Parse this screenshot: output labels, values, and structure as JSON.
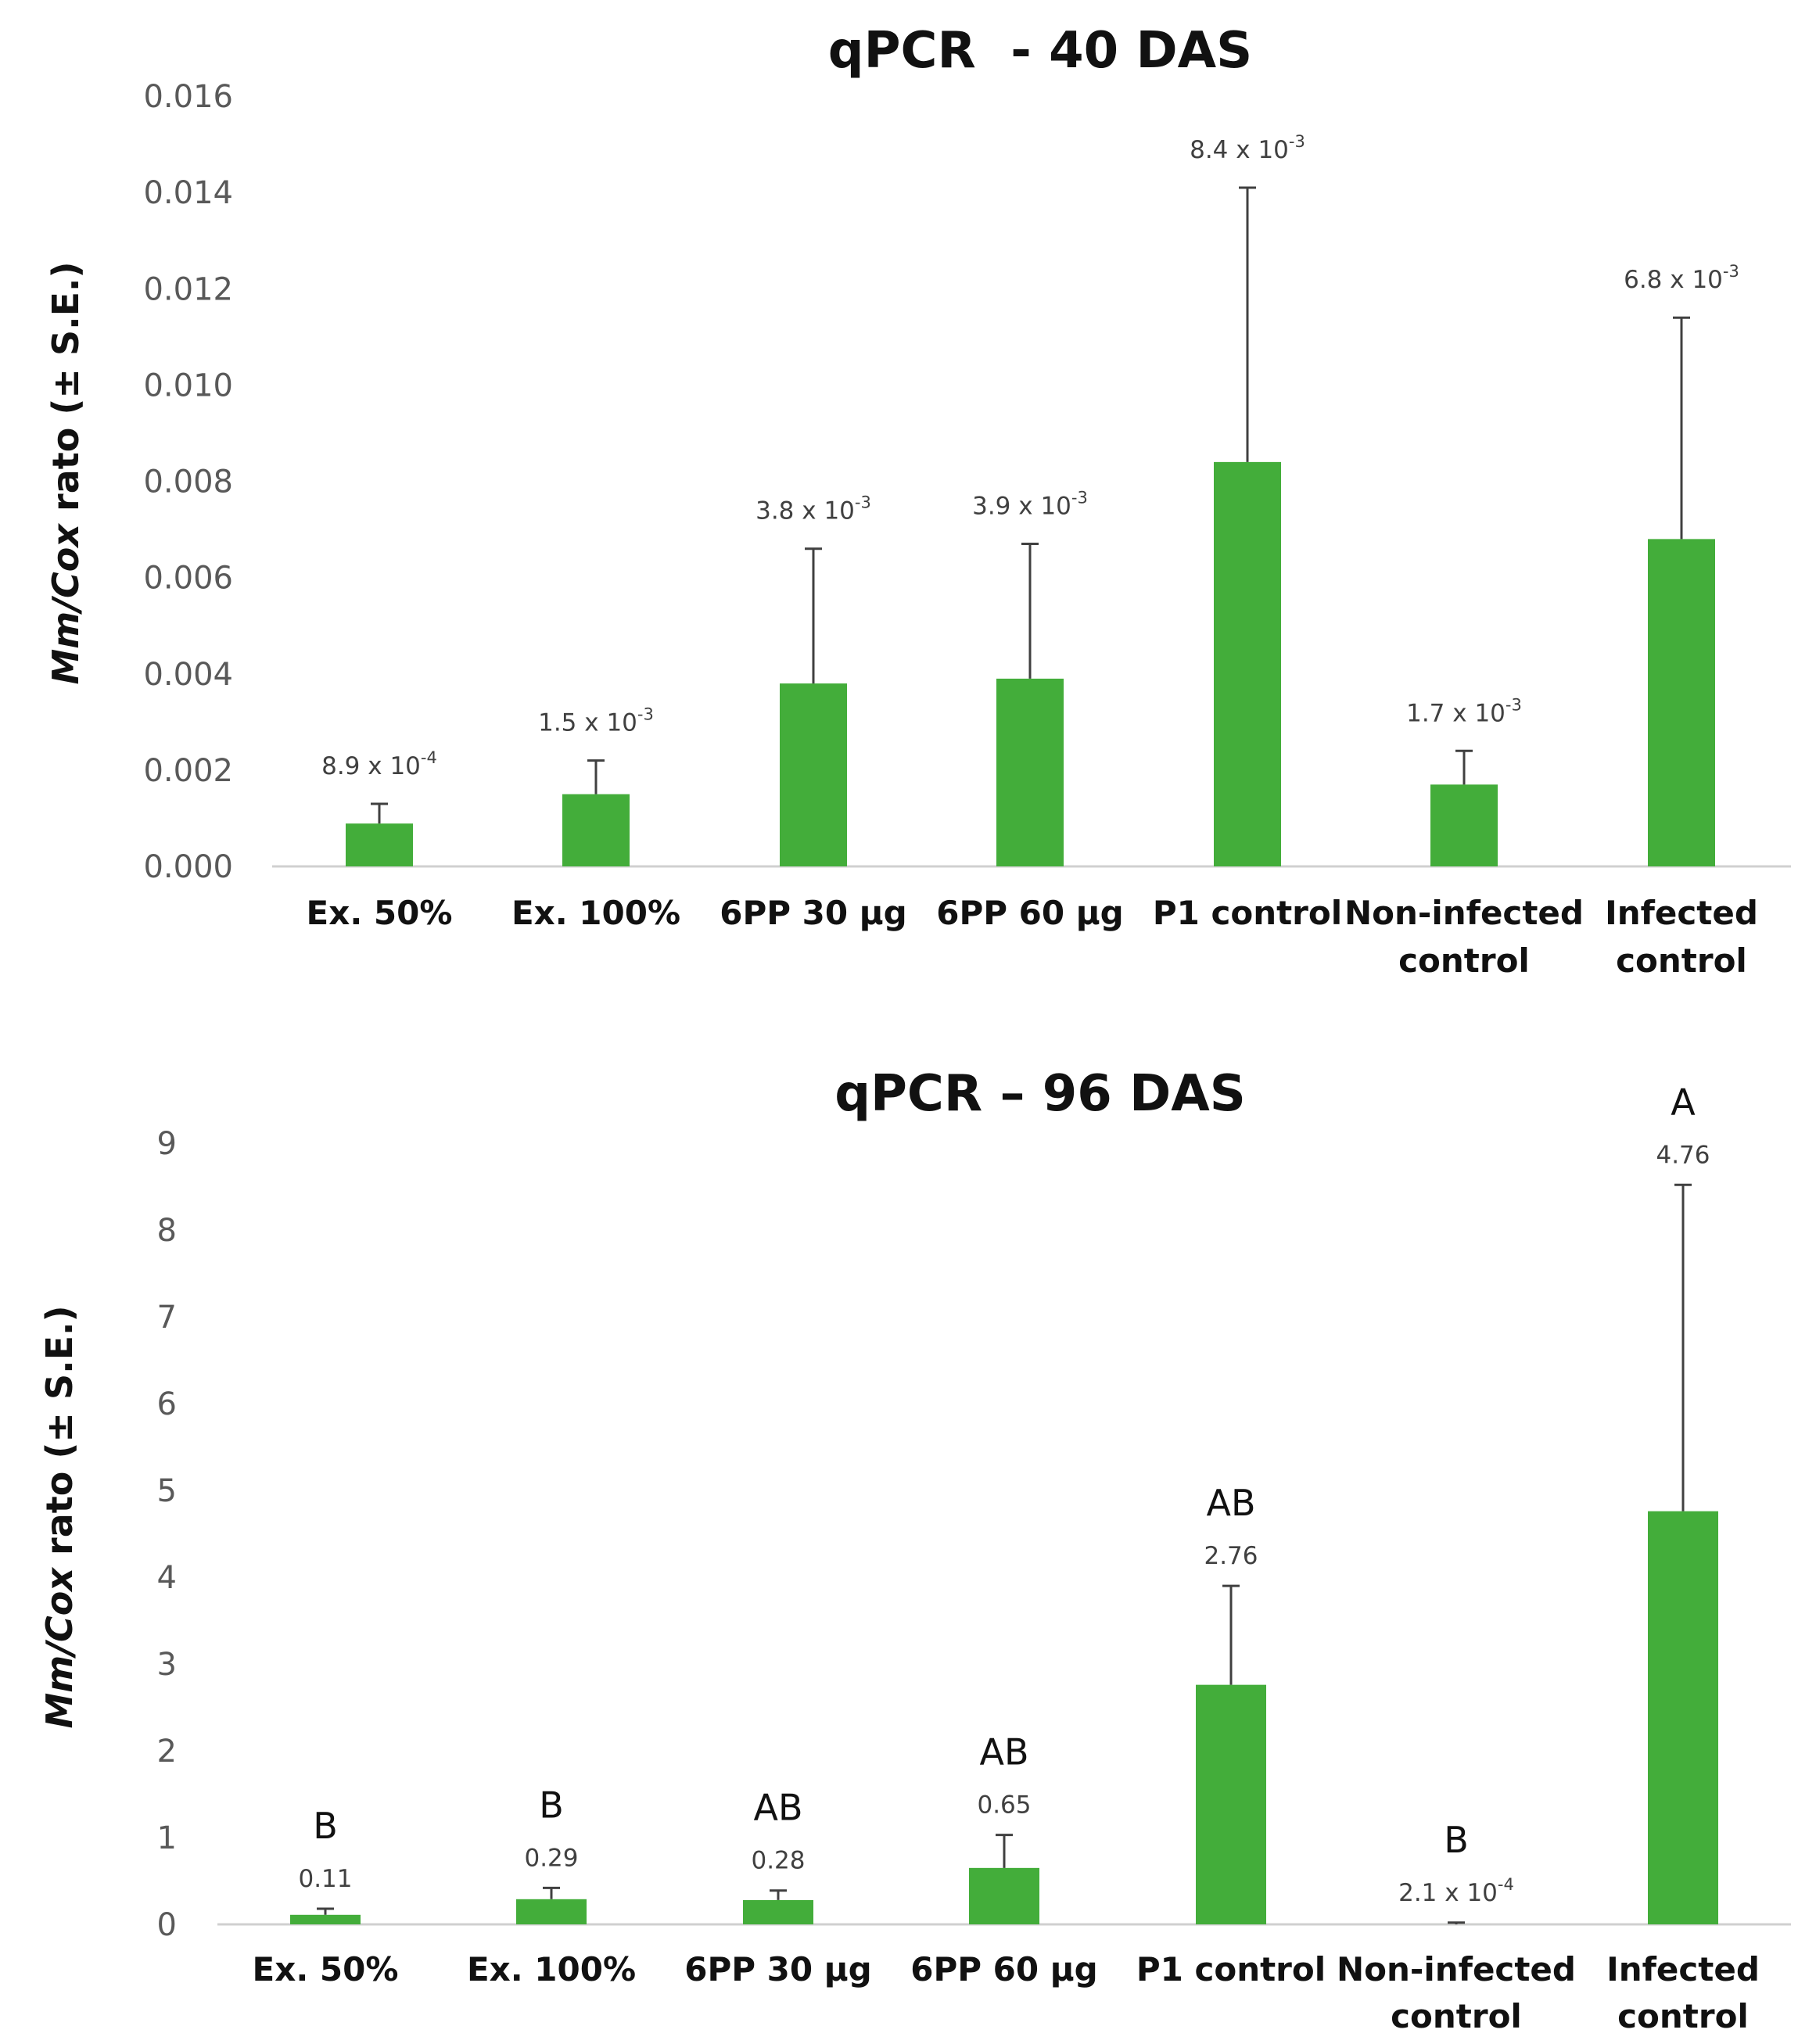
{
  "chart_data": [
    {
      "type": "bar",
      "title": "qPCR  - 40 DAS",
      "ylabel": {
        "italic": "Mm/Cox",
        "rest": " rato (± S.E.)"
      },
      "xlabel": "",
      "categories": [
        [
          "Ex. 50%"
        ],
        [
          "Ex. 100%"
        ],
        [
          "6PP 30 µg"
        ],
        [
          "6PP 60 µg"
        ],
        [
          "P1 control"
        ],
        [
          "Non-infected",
          "control"
        ],
        [
          "Infected",
          "control"
        ]
      ],
      "values": [
        0.00089,
        0.0015,
        0.0038,
        0.0039,
        0.0084,
        0.0017,
        0.0068
      ],
      "error_upper": [
        0.0013,
        0.0022,
        0.0066,
        0.0067,
        0.0141,
        0.0024,
        0.0114
      ],
      "data_labels": [
        {
          "base": "8.9 x 10",
          "exp": "-4"
        },
        {
          "base": "1.5 x 10",
          "exp": "-3"
        },
        {
          "base": "3.8 x 10",
          "exp": "-3"
        },
        {
          "base": "3.9 x 10",
          "exp": "-3"
        },
        {
          "base": "8.4 x 10",
          "exp": "-3"
        },
        {
          "base": "1.7 x 10",
          "exp": "-3"
        },
        {
          "base": "6.8 x 10",
          "exp": "-3"
        }
      ],
      "letters": [],
      "ylim": [
        0,
        0.016
      ],
      "yticks": [
        "0.000",
        "0.002",
        "0.004",
        "0.006",
        "0.008",
        "0.010",
        "0.012",
        "0.014",
        "0.016"
      ],
      "ytick_values": [
        0,
        0.002,
        0.004,
        0.006,
        0.008,
        0.01,
        0.012,
        0.014,
        0.016
      ],
      "bar_color": "#43ad3a",
      "grid": false
    },
    {
      "type": "bar",
      "title": "qPCR – 96 DAS",
      "ylabel": {
        "italic": "Mm/Cox",
        "rest": " rato (± S.E.)"
      },
      "xlabel": "",
      "categories": [
        [
          "Ex. 50%"
        ],
        [
          "Ex. 100%"
        ],
        [
          "6PP 30 µg"
        ],
        [
          "6PP 60 µg"
        ],
        [
          "P1 control"
        ],
        [
          "Non-infected",
          "control"
        ],
        [
          "Infected",
          "control"
        ]
      ],
      "values": [
        0.11,
        0.29,
        0.28,
        0.65,
        2.76,
        0.00021,
        4.76
      ],
      "error_upper": [
        0.18,
        0.42,
        0.39,
        1.03,
        3.9,
        0.02,
        8.52
      ],
      "data_labels": [
        {
          "base": "0.11",
          "exp": ""
        },
        {
          "base": "0.29",
          "exp": ""
        },
        {
          "base": "0.28",
          "exp": ""
        },
        {
          "base": "0.65",
          "exp": ""
        },
        {
          "base": "2.76",
          "exp": ""
        },
        {
          "base": "2.1 x 10",
          "exp": "-4"
        },
        {
          "base": "4.76",
          "exp": ""
        }
      ],
      "letters": [
        "B",
        "B",
        "AB",
        "AB",
        "AB",
        "B",
        "A"
      ],
      "ylim": [
        0,
        9
      ],
      "yticks": [
        "0",
        "1",
        "2",
        "3",
        "4",
        "5",
        "6",
        "7",
        "8",
        "9"
      ],
      "ytick_values": [
        0,
        1,
        2,
        3,
        4,
        5,
        6,
        7,
        8,
        9
      ],
      "bar_color": "#43ad3a",
      "grid": false
    }
  ]
}
